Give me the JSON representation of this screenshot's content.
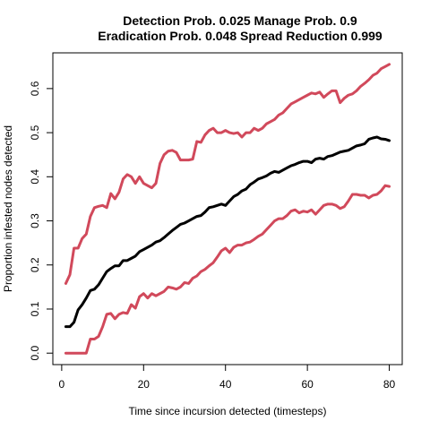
{
  "chart_data": {
    "type": "line",
    "title_line1": "Detection Prob. 0.025 Manage Prob. 0.9",
    "title_line2": "Eradication Prob. 0.048 Spread Reduction 0.999",
    "xlabel": "Time since incursion detected (timesteps)",
    "ylabel": "Proportion infested nodes detected",
    "xlim": [
      1,
      80
    ],
    "ylim": [
      0,
      0.65
    ],
    "xticks": [
      0,
      20,
      40,
      60,
      80
    ],
    "yticks": [
      0.0,
      0.1,
      0.2,
      0.3,
      0.4,
      0.5,
      0.6
    ],
    "ytick_labels": [
      "0.0",
      "0.1",
      "0.2",
      "0.3",
      "0.4",
      "0.5",
      "0.6"
    ],
    "grid": false,
    "legend": "none",
    "series": [
      {
        "color": "#D1495B",
        "width": 3,
        "points": [
          [
            1,
            0.158
          ],
          [
            2,
            0.178
          ],
          [
            3,
            0.238
          ],
          [
            4,
            0.238
          ],
          [
            5,
            0.26
          ],
          [
            6,
            0.27
          ],
          [
            7,
            0.31
          ],
          [
            8,
            0.33
          ],
          [
            9,
            0.333
          ],
          [
            10,
            0.335
          ],
          [
            11,
            0.33
          ],
          [
            12,
            0.362
          ],
          [
            13,
            0.35
          ],
          [
            14,
            0.365
          ],
          [
            15,
            0.395
          ],
          [
            16,
            0.405
          ],
          [
            17,
            0.4
          ],
          [
            18,
            0.385
          ],
          [
            19,
            0.4
          ],
          [
            20,
            0.385
          ],
          [
            21,
            0.38
          ],
          [
            22,
            0.375
          ],
          [
            23,
            0.385
          ],
          [
            24,
            0.43
          ],
          [
            25,
            0.45
          ],
          [
            26,
            0.458
          ],
          [
            27,
            0.46
          ],
          [
            28,
            0.455
          ],
          [
            29,
            0.438
          ],
          [
            30,
            0.438
          ],
          [
            31,
            0.438
          ],
          [
            32,
            0.44
          ],
          [
            33,
            0.48
          ],
          [
            34,
            0.478
          ],
          [
            35,
            0.495
          ],
          [
            36,
            0.505
          ],
          [
            37,
            0.51
          ],
          [
            38,
            0.5
          ],
          [
            39,
            0.5
          ],
          [
            40,
            0.505
          ],
          [
            41,
            0.5
          ],
          [
            42,
            0.498
          ],
          [
            43,
            0.5
          ],
          [
            44,
            0.49
          ],
          [
            45,
            0.5
          ],
          [
            46,
            0.5
          ],
          [
            47,
            0.51
          ],
          [
            48,
            0.505
          ],
          [
            49,
            0.51
          ],
          [
            50,
            0.52
          ],
          [
            51,
            0.525
          ],
          [
            52,
            0.53
          ],
          [
            53,
            0.54
          ],
          [
            54,
            0.545
          ],
          [
            55,
            0.555
          ],
          [
            56,
            0.565
          ],
          [
            57,
            0.57
          ],
          [
            58,
            0.575
          ],
          [
            59,
            0.58
          ],
          [
            60,
            0.585
          ],
          [
            61,
            0.59
          ],
          [
            62,
            0.588
          ],
          [
            63,
            0.592
          ],
          [
            64,
            0.58
          ],
          [
            65,
            0.588
          ],
          [
            66,
            0.595
          ],
          [
            67,
            0.595
          ],
          [
            68,
            0.568
          ],
          [
            69,
            0.578
          ],
          [
            70,
            0.585
          ],
          [
            71,
            0.588
          ],
          [
            72,
            0.595
          ],
          [
            73,
            0.605
          ],
          [
            74,
            0.612
          ],
          [
            75,
            0.62
          ],
          [
            76,
            0.63
          ],
          [
            77,
            0.635
          ],
          [
            78,
            0.645
          ],
          [
            79,
            0.65
          ],
          [
            80,
            0.655
          ]
        ]
      },
      {
        "color": "#000000",
        "width": 3,
        "points": [
          [
            1,
            0.06
          ],
          [
            2,
            0.06
          ],
          [
            3,
            0.07
          ],
          [
            4,
            0.098
          ],
          [
            5,
            0.11
          ],
          [
            6,
            0.125
          ],
          [
            7,
            0.142
          ],
          [
            8,
            0.145
          ],
          [
            9,
            0.155
          ],
          [
            10,
            0.17
          ],
          [
            11,
            0.185
          ],
          [
            12,
            0.192
          ],
          [
            13,
            0.198
          ],
          [
            14,
            0.198
          ],
          [
            15,
            0.21
          ],
          [
            16,
            0.21
          ],
          [
            17,
            0.215
          ],
          [
            18,
            0.22
          ],
          [
            19,
            0.23
          ],
          [
            20,
            0.235
          ],
          [
            21,
            0.24
          ],
          [
            22,
            0.245
          ],
          [
            23,
            0.252
          ],
          [
            24,
            0.255
          ],
          [
            25,
            0.262
          ],
          [
            26,
            0.27
          ],
          [
            27,
            0.278
          ],
          [
            28,
            0.285
          ],
          [
            29,
            0.292
          ],
          [
            30,
            0.295
          ],
          [
            31,
            0.3
          ],
          [
            32,
            0.305
          ],
          [
            33,
            0.31
          ],
          [
            34,
            0.312
          ],
          [
            35,
            0.32
          ],
          [
            36,
            0.33
          ],
          [
            37,
            0.332
          ],
          [
            38,
            0.335
          ],
          [
            39,
            0.338
          ],
          [
            40,
            0.335
          ],
          [
            41,
            0.345
          ],
          [
            42,
            0.355
          ],
          [
            43,
            0.36
          ],
          [
            44,
            0.368
          ],
          [
            45,
            0.372
          ],
          [
            46,
            0.382
          ],
          [
            47,
            0.388
          ],
          [
            48,
            0.395
          ],
          [
            49,
            0.398
          ],
          [
            50,
            0.402
          ],
          [
            51,
            0.408
          ],
          [
            52,
            0.412
          ],
          [
            53,
            0.41
          ],
          [
            54,
            0.415
          ],
          [
            55,
            0.42
          ],
          [
            56,
            0.425
          ],
          [
            57,
            0.428
          ],
          [
            58,
            0.432
          ],
          [
            59,
            0.435
          ],
          [
            60,
            0.435
          ],
          [
            61,
            0.432
          ],
          [
            62,
            0.44
          ],
          [
            63,
            0.442
          ],
          [
            64,
            0.44
          ],
          [
            65,
            0.446
          ],
          [
            66,
            0.448
          ],
          [
            67,
            0.452
          ],
          [
            68,
            0.456
          ],
          [
            69,
            0.458
          ],
          [
            70,
            0.46
          ],
          [
            71,
            0.465
          ],
          [
            72,
            0.47
          ],
          [
            73,
            0.472
          ],
          [
            74,
            0.475
          ],
          [
            75,
            0.485
          ],
          [
            76,
            0.488
          ],
          [
            77,
            0.49
          ],
          [
            78,
            0.486
          ],
          [
            79,
            0.485
          ],
          [
            80,
            0.482
          ]
        ]
      },
      {
        "color": "#D1495B",
        "width": 3,
        "points": [
          [
            1,
            0.0
          ],
          [
            2,
            0.0
          ],
          [
            3,
            0.0
          ],
          [
            4,
            0.0
          ],
          [
            5,
            0.0
          ],
          [
            6,
            0.0
          ],
          [
            7,
            0.032
          ],
          [
            8,
            0.032
          ],
          [
            9,
            0.038
          ],
          [
            10,
            0.06
          ],
          [
            11,
            0.088
          ],
          [
            12,
            0.09
          ],
          [
            13,
            0.078
          ],
          [
            14,
            0.088
          ],
          [
            15,
            0.092
          ],
          [
            16,
            0.09
          ],
          [
            17,
            0.11
          ],
          [
            18,
            0.102
          ],
          [
            19,
            0.128
          ],
          [
            20,
            0.135
          ],
          [
            21,
            0.125
          ],
          [
            22,
            0.135
          ],
          [
            23,
            0.13
          ],
          [
            24,
            0.135
          ],
          [
            25,
            0.14
          ],
          [
            26,
            0.15
          ],
          [
            27,
            0.148
          ],
          [
            28,
            0.145
          ],
          [
            29,
            0.15
          ],
          [
            30,
            0.16
          ],
          [
            31,
            0.158
          ],
          [
            32,
            0.17
          ],
          [
            33,
            0.175
          ],
          [
            34,
            0.185
          ],
          [
            35,
            0.19
          ],
          [
            36,
            0.198
          ],
          [
            37,
            0.205
          ],
          [
            38,
            0.218
          ],
          [
            39,
            0.232
          ],
          [
            40,
            0.238
          ],
          [
            41,
            0.228
          ],
          [
            42,
            0.24
          ],
          [
            43,
            0.245
          ],
          [
            44,
            0.245
          ],
          [
            45,
            0.25
          ],
          [
            46,
            0.252
          ],
          [
            47,
            0.258
          ],
          [
            48,
            0.265
          ],
          [
            49,
            0.27
          ],
          [
            50,
            0.28
          ],
          [
            51,
            0.29
          ],
          [
            52,
            0.3
          ],
          [
            53,
            0.305
          ],
          [
            54,
            0.305
          ],
          [
            55,
            0.312
          ],
          [
            56,
            0.322
          ],
          [
            57,
            0.325
          ],
          [
            58,
            0.318
          ],
          [
            59,
            0.322
          ],
          [
            60,
            0.32
          ],
          [
            61,
            0.325
          ],
          [
            62,
            0.315
          ],
          [
            63,
            0.325
          ],
          [
            64,
            0.335
          ],
          [
            65,
            0.338
          ],
          [
            66,
            0.338
          ],
          [
            67,
            0.335
          ],
          [
            68,
            0.328
          ],
          [
            69,
            0.332
          ],
          [
            70,
            0.345
          ],
          [
            71,
            0.36
          ],
          [
            72,
            0.36
          ],
          [
            73,
            0.358
          ],
          [
            74,
            0.358
          ],
          [
            75,
            0.352
          ],
          [
            76,
            0.358
          ],
          [
            77,
            0.36
          ],
          [
            78,
            0.368
          ],
          [
            79,
            0.38
          ],
          [
            80,
            0.378
          ]
        ]
      }
    ]
  }
}
